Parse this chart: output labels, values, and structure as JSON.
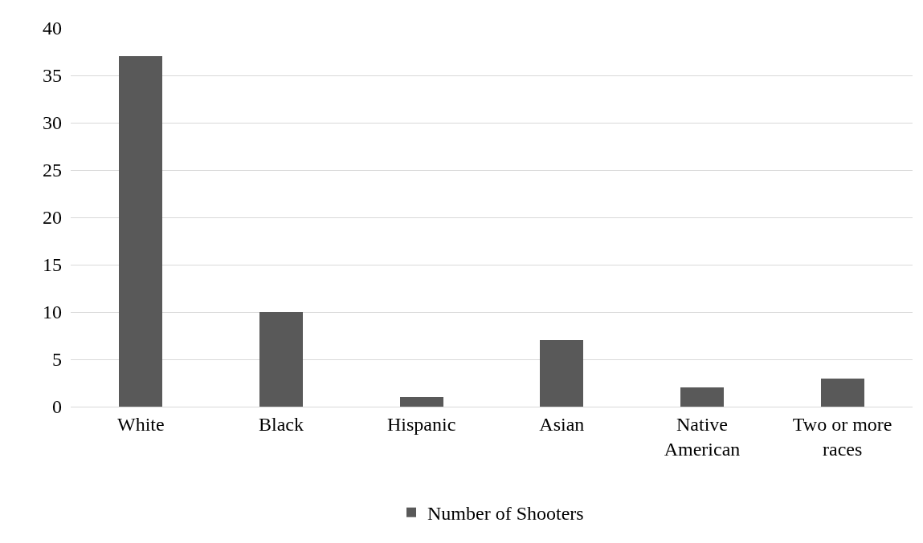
{
  "chart_data": {
    "type": "bar",
    "categories": [
      "White",
      "Black",
      "Hispanic",
      "Asian",
      "Native American",
      "Two or more races"
    ],
    "series": [
      {
        "name": "Number of Shooters",
        "color": "#595959",
        "values": [
          37,
          10,
          1,
          7,
          2,
          3
        ]
      }
    ],
    "ylim": [
      0,
      40
    ],
    "yticks": [
      0,
      5,
      10,
      15,
      20,
      25,
      30,
      35,
      40
    ],
    "grid": "y",
    "legend": "bottom"
  }
}
